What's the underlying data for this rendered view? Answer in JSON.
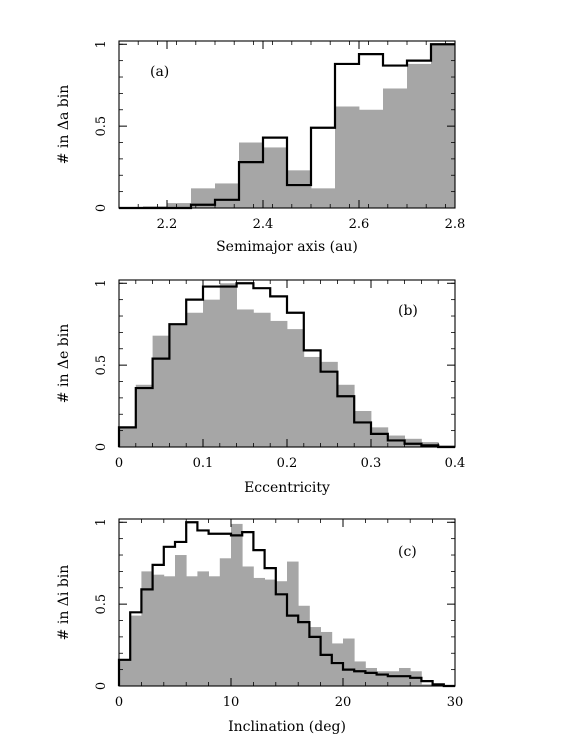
{
  "chart_data": [
    {
      "type": "histogram",
      "panel_label": "(a)",
      "xlabel": "Semimajor axis (au)",
      "ylabel": "# in Δa bin",
      "xlim": [
        2.1,
        2.8
      ],
      "ylim": [
        0,
        1.02
      ],
      "x_ticks": [
        2.2,
        2.4,
        2.6,
        2.8
      ],
      "x_tick_labels": [
        "2.2",
        "2.4",
        "2.6",
        "2.8"
      ],
      "y_ticks": [
        0,
        0.5,
        1
      ],
      "y_tick_labels": [
        "0",
        "0.5",
        "1"
      ],
      "bin_edges": [
        2.1,
        2.15,
        2.2,
        2.25,
        2.3,
        2.35,
        2.4,
        2.45,
        2.5,
        2.55,
        2.6,
        2.65,
        2.7,
        2.75,
        2.8
      ],
      "series": [
        {
          "style": "filled",
          "color": "#a6a6a6",
          "values": [
            0.0,
            0.01,
            0.03,
            0.12,
            0.15,
            0.4,
            0.37,
            0.23,
            0.12,
            0.62,
            0.6,
            0.73,
            0.88,
            1.0
          ]
        },
        {
          "style": "step",
          "color": "#000000",
          "values": [
            0.0,
            0.0,
            0.0,
            0.02,
            0.05,
            0.28,
            0.43,
            0.14,
            0.49,
            0.88,
            0.94,
            0.87,
            0.9,
            1.0
          ]
        }
      ]
    },
    {
      "type": "histogram",
      "panel_label": "(b)",
      "xlabel": "Eccentricity",
      "ylabel": "# in Δe bin",
      "xlim": [
        0,
        0.4
      ],
      "ylim": [
        0,
        1.02
      ],
      "x_ticks": [
        0,
        0.1,
        0.2,
        0.3,
        0.4
      ],
      "x_tick_labels": [
        "0",
        "0.1",
        "0.2",
        "0.3",
        "0.4"
      ],
      "y_ticks": [
        0,
        0.5,
        1
      ],
      "y_tick_labels": [
        "0",
        "0.5",
        "1"
      ],
      "bin_edges": [
        0,
        0.02,
        0.04,
        0.06,
        0.08,
        0.1,
        0.12,
        0.14,
        0.16,
        0.18,
        0.2,
        0.22,
        0.24,
        0.26,
        0.28,
        0.3,
        0.32,
        0.34,
        0.36,
        0.38,
        0.4
      ],
      "series": [
        {
          "style": "filled",
          "color": "#a6a6a6",
          "values": [
            0.12,
            0.38,
            0.68,
            0.75,
            0.82,
            0.9,
            1.0,
            0.84,
            0.82,
            0.77,
            0.72,
            0.55,
            0.52,
            0.38,
            0.22,
            0.12,
            0.07,
            0.05,
            0.03,
            0.01
          ]
        },
        {
          "style": "step",
          "color": "#000000",
          "values": [
            0.12,
            0.36,
            0.54,
            0.75,
            0.9,
            0.98,
            0.98,
            1.0,
            0.97,
            0.92,
            0.82,
            0.59,
            0.46,
            0.31,
            0.15,
            0.08,
            0.04,
            0.02,
            0.01,
            0.0
          ]
        }
      ]
    },
    {
      "type": "histogram",
      "panel_label": "(c)",
      "xlabel": "Inclination (deg)",
      "ylabel": "# in Δi bin",
      "xlim": [
        0,
        30
      ],
      "ylim": [
        0,
        1.02
      ],
      "x_ticks": [
        0,
        10,
        20,
        30
      ],
      "x_tick_labels": [
        "0",
        "10",
        "20",
        "30"
      ],
      "y_ticks": [
        0,
        0.5,
        1
      ],
      "y_tick_labels": [
        "0",
        "0.5",
        "1"
      ],
      "bin_edges": [
        0,
        1,
        2,
        3,
        4,
        5,
        6,
        7,
        8,
        9,
        10,
        11,
        12,
        13,
        14,
        15,
        16,
        17,
        18,
        19,
        20,
        21,
        22,
        23,
        24,
        25,
        26,
        27,
        28,
        29,
        30
      ],
      "series": [
        {
          "style": "filled",
          "color": "#a6a6a6",
          "values": [
            0.16,
            0.43,
            0.7,
            0.68,
            0.67,
            0.8,
            0.67,
            0.7,
            0.67,
            0.78,
            0.99,
            0.73,
            0.66,
            0.65,
            0.64,
            0.76,
            0.49,
            0.36,
            0.33,
            0.26,
            0.29,
            0.15,
            0.11,
            0.09,
            0.09,
            0.11,
            0.09,
            0.01,
            0.0,
            0.0
          ]
        },
        {
          "style": "step",
          "color": "#000000",
          "values": [
            0.16,
            0.45,
            0.59,
            0.74,
            0.85,
            0.88,
            1.0,
            0.95,
            0.93,
            0.93,
            0.92,
            0.94,
            0.83,
            0.72,
            0.56,
            0.43,
            0.39,
            0.3,
            0.19,
            0.14,
            0.1,
            0.09,
            0.08,
            0.07,
            0.06,
            0.06,
            0.05,
            0.03,
            0.01,
            0.0
          ]
        }
      ]
    }
  ]
}
